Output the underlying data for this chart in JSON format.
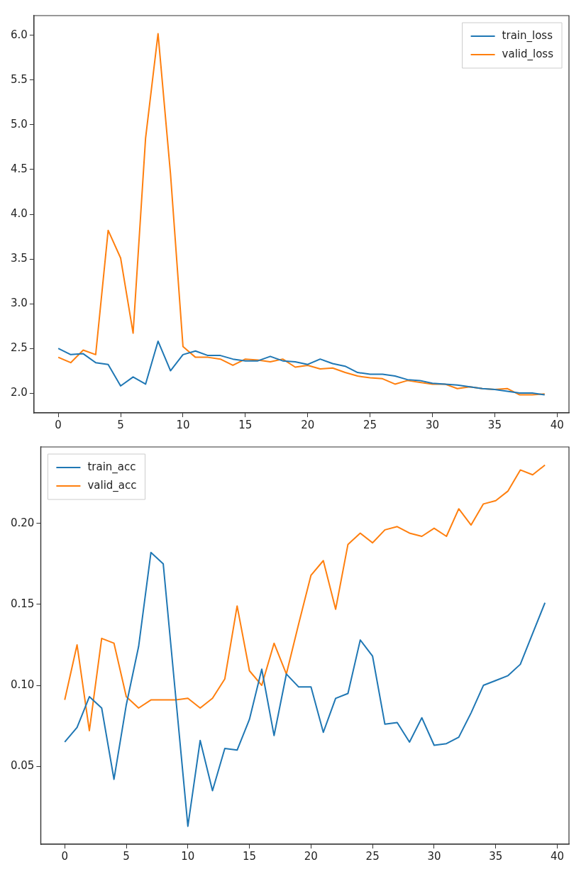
{
  "chart_data": [
    {
      "type": "line",
      "x": [
        0,
        1,
        2,
        3,
        4,
        5,
        6,
        7,
        8,
        9,
        10,
        11,
        12,
        13,
        14,
        15,
        16,
        17,
        18,
        19,
        20,
        21,
        22,
        23,
        24,
        25,
        26,
        27,
        28,
        29,
        30,
        31,
        32,
        33,
        34,
        35,
        36,
        37,
        38,
        39
      ],
      "series": [
        {
          "name": "train_loss",
          "color": "#1f77b4",
          "values": [
            2.5,
            2.43,
            2.44,
            2.34,
            2.32,
            2.08,
            2.18,
            2.1,
            2.58,
            2.25,
            2.43,
            2.47,
            2.42,
            2.42,
            2.38,
            2.36,
            2.36,
            2.41,
            2.36,
            2.35,
            2.32,
            2.38,
            2.33,
            2.3,
            2.23,
            2.21,
            2.21,
            2.19,
            2.15,
            2.14,
            2.11,
            2.1,
            2.09,
            2.07,
            2.05,
            2.04,
            2.02,
            2.0,
            2.0,
            1.98
          ]
        },
        {
          "name": "valid_loss",
          "color": "#ff7f0e",
          "values": [
            2.4,
            2.34,
            2.48,
            2.43,
            3.82,
            3.51,
            2.67,
            4.85,
            6.02,
            4.45,
            2.52,
            2.4,
            2.4,
            2.38,
            2.31,
            2.38,
            2.37,
            2.35,
            2.38,
            2.29,
            2.31,
            2.27,
            2.28,
            2.23,
            2.19,
            2.17,
            2.16,
            2.1,
            2.14,
            2.12,
            2.1,
            2.1,
            2.05,
            2.07,
            2.05,
            2.04,
            2.05,
            1.98,
            1.98,
            1.99
          ]
        }
      ],
      "xlim": [
        -1.95,
        40.95
      ],
      "xticks": [
        0,
        5,
        10,
        15,
        20,
        25,
        30,
        35,
        40
      ],
      "ylim": [
        1.778,
        6.222
      ],
      "yticks": [
        {
          "value": 2,
          "label": "2.0"
        },
        {
          "value": 2.5,
          "label": "2.5"
        },
        {
          "value": 3,
          "label": "3.0"
        },
        {
          "value": 3.5,
          "label": "3.5"
        },
        {
          "value": 4,
          "label": "4.0"
        },
        {
          "value": 4.5,
          "label": "4.5"
        },
        {
          "value": 5,
          "label": "5.0"
        },
        {
          "value": 5.5,
          "label": "5.5"
        },
        {
          "value": 6,
          "label": "6.0"
        }
      ],
      "grid": false,
      "legend": "top right",
      "marker": "none",
      "line_style": "solid"
    },
    {
      "type": "line",
      "x": [
        0,
        1,
        2,
        3,
        4,
        5,
        6,
        7,
        8,
        9,
        10,
        11,
        12,
        13,
        14,
        15,
        16,
        17,
        18,
        19,
        20,
        21,
        22,
        23,
        24,
        25,
        26,
        27,
        28,
        29,
        30,
        31,
        32,
        33,
        34,
        35,
        36,
        37,
        38,
        39
      ],
      "series": [
        {
          "name": "train_acc",
          "color": "#1f77b4",
          "values": [
            0.065,
            0.074,
            0.093,
            0.086,
            0.042,
            0.088,
            0.124,
            0.182,
            0.175,
            0.094,
            0.013,
            0.066,
            0.035,
            0.061,
            0.06,
            0.079,
            0.11,
            0.069,
            0.107,
            0.099,
            0.099,
            0.071,
            0.092,
            0.095,
            0.128,
            0.118,
            0.076,
            0.077,
            0.065,
            0.08,
            0.063,
            0.064,
            0.068,
            0.083,
            0.1,
            0.103,
            0.106,
            0.113,
            0.132,
            0.151
          ]
        },
        {
          "name": "valid_acc",
          "color": "#ff7f0e",
          "values": [
            0.091,
            0.125,
            0.072,
            0.129,
            0.126,
            0.093,
            0.086,
            0.091,
            0.091,
            0.091,
            0.092,
            0.086,
            0.092,
            0.104,
            0.149,
            0.109,
            0.1,
            0.126,
            0.107,
            0.138,
            0.168,
            0.177,
            0.147,
            0.187,
            0.194,
            0.188,
            0.196,
            0.198,
            0.194,
            0.192,
            0.197,
            0.192,
            0.209,
            0.199,
            0.212,
            0.214,
            0.22,
            0.233,
            0.23,
            0.236
          ]
        }
      ],
      "xlim": [
        -1.95,
        40.95
      ],
      "xticks": [
        0,
        5,
        10,
        15,
        20,
        25,
        30,
        35,
        40
      ],
      "ylim": [
        0.0019,
        0.2472
      ],
      "yticks": [
        0.05,
        {
          "value": 0.1,
          "label": "0.10"
        },
        0.15,
        {
          "value": 0.2,
          "label": "0.20"
        }
      ],
      "grid": false,
      "legend": "top left",
      "marker": "none",
      "line_style": "solid"
    }
  ]
}
